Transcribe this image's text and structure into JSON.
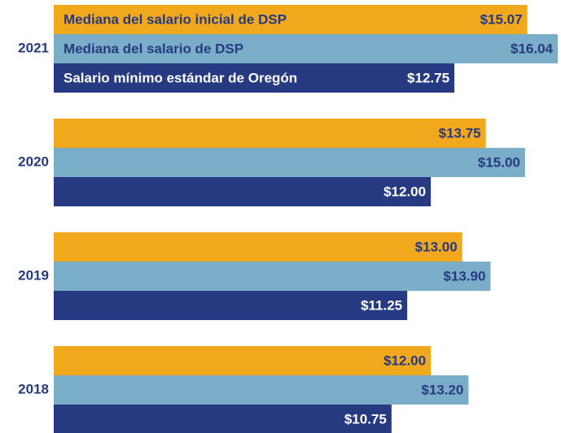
{
  "chart_data": {
    "type": "bar",
    "orientation": "horizontal",
    "categories": [
      "2021",
      "2020",
      "2019",
      "2018"
    ],
    "series": [
      {
        "name": "Mediana del salario inicial de DSP",
        "color": "#f2a81d",
        "values": [
          15.07,
          13.75,
          13.0,
          12.0
        ],
        "value_labels": [
          "$15.07",
          "$13.75",
          "$13.00",
          "$12.00"
        ]
      },
      {
        "name": "Mediana del salario de DSP",
        "color": "#7aaec8",
        "values": [
          16.04,
          15.0,
          13.9,
          13.2
        ],
        "value_labels": [
          "$16.04",
          "$15.00",
          "$13.90",
          "$13.20"
        ]
      },
      {
        "name": "Salario mínimo estándar de Oregón",
        "color": "#253a80",
        "values": [
          12.75,
          12.0,
          11.25,
          10.75
        ],
        "value_labels": [
          "$12.75",
          "$12.00",
          "$11.25",
          "$10.75"
        ]
      }
    ],
    "xlim": [
      0,
      16.04
    ]
  }
}
